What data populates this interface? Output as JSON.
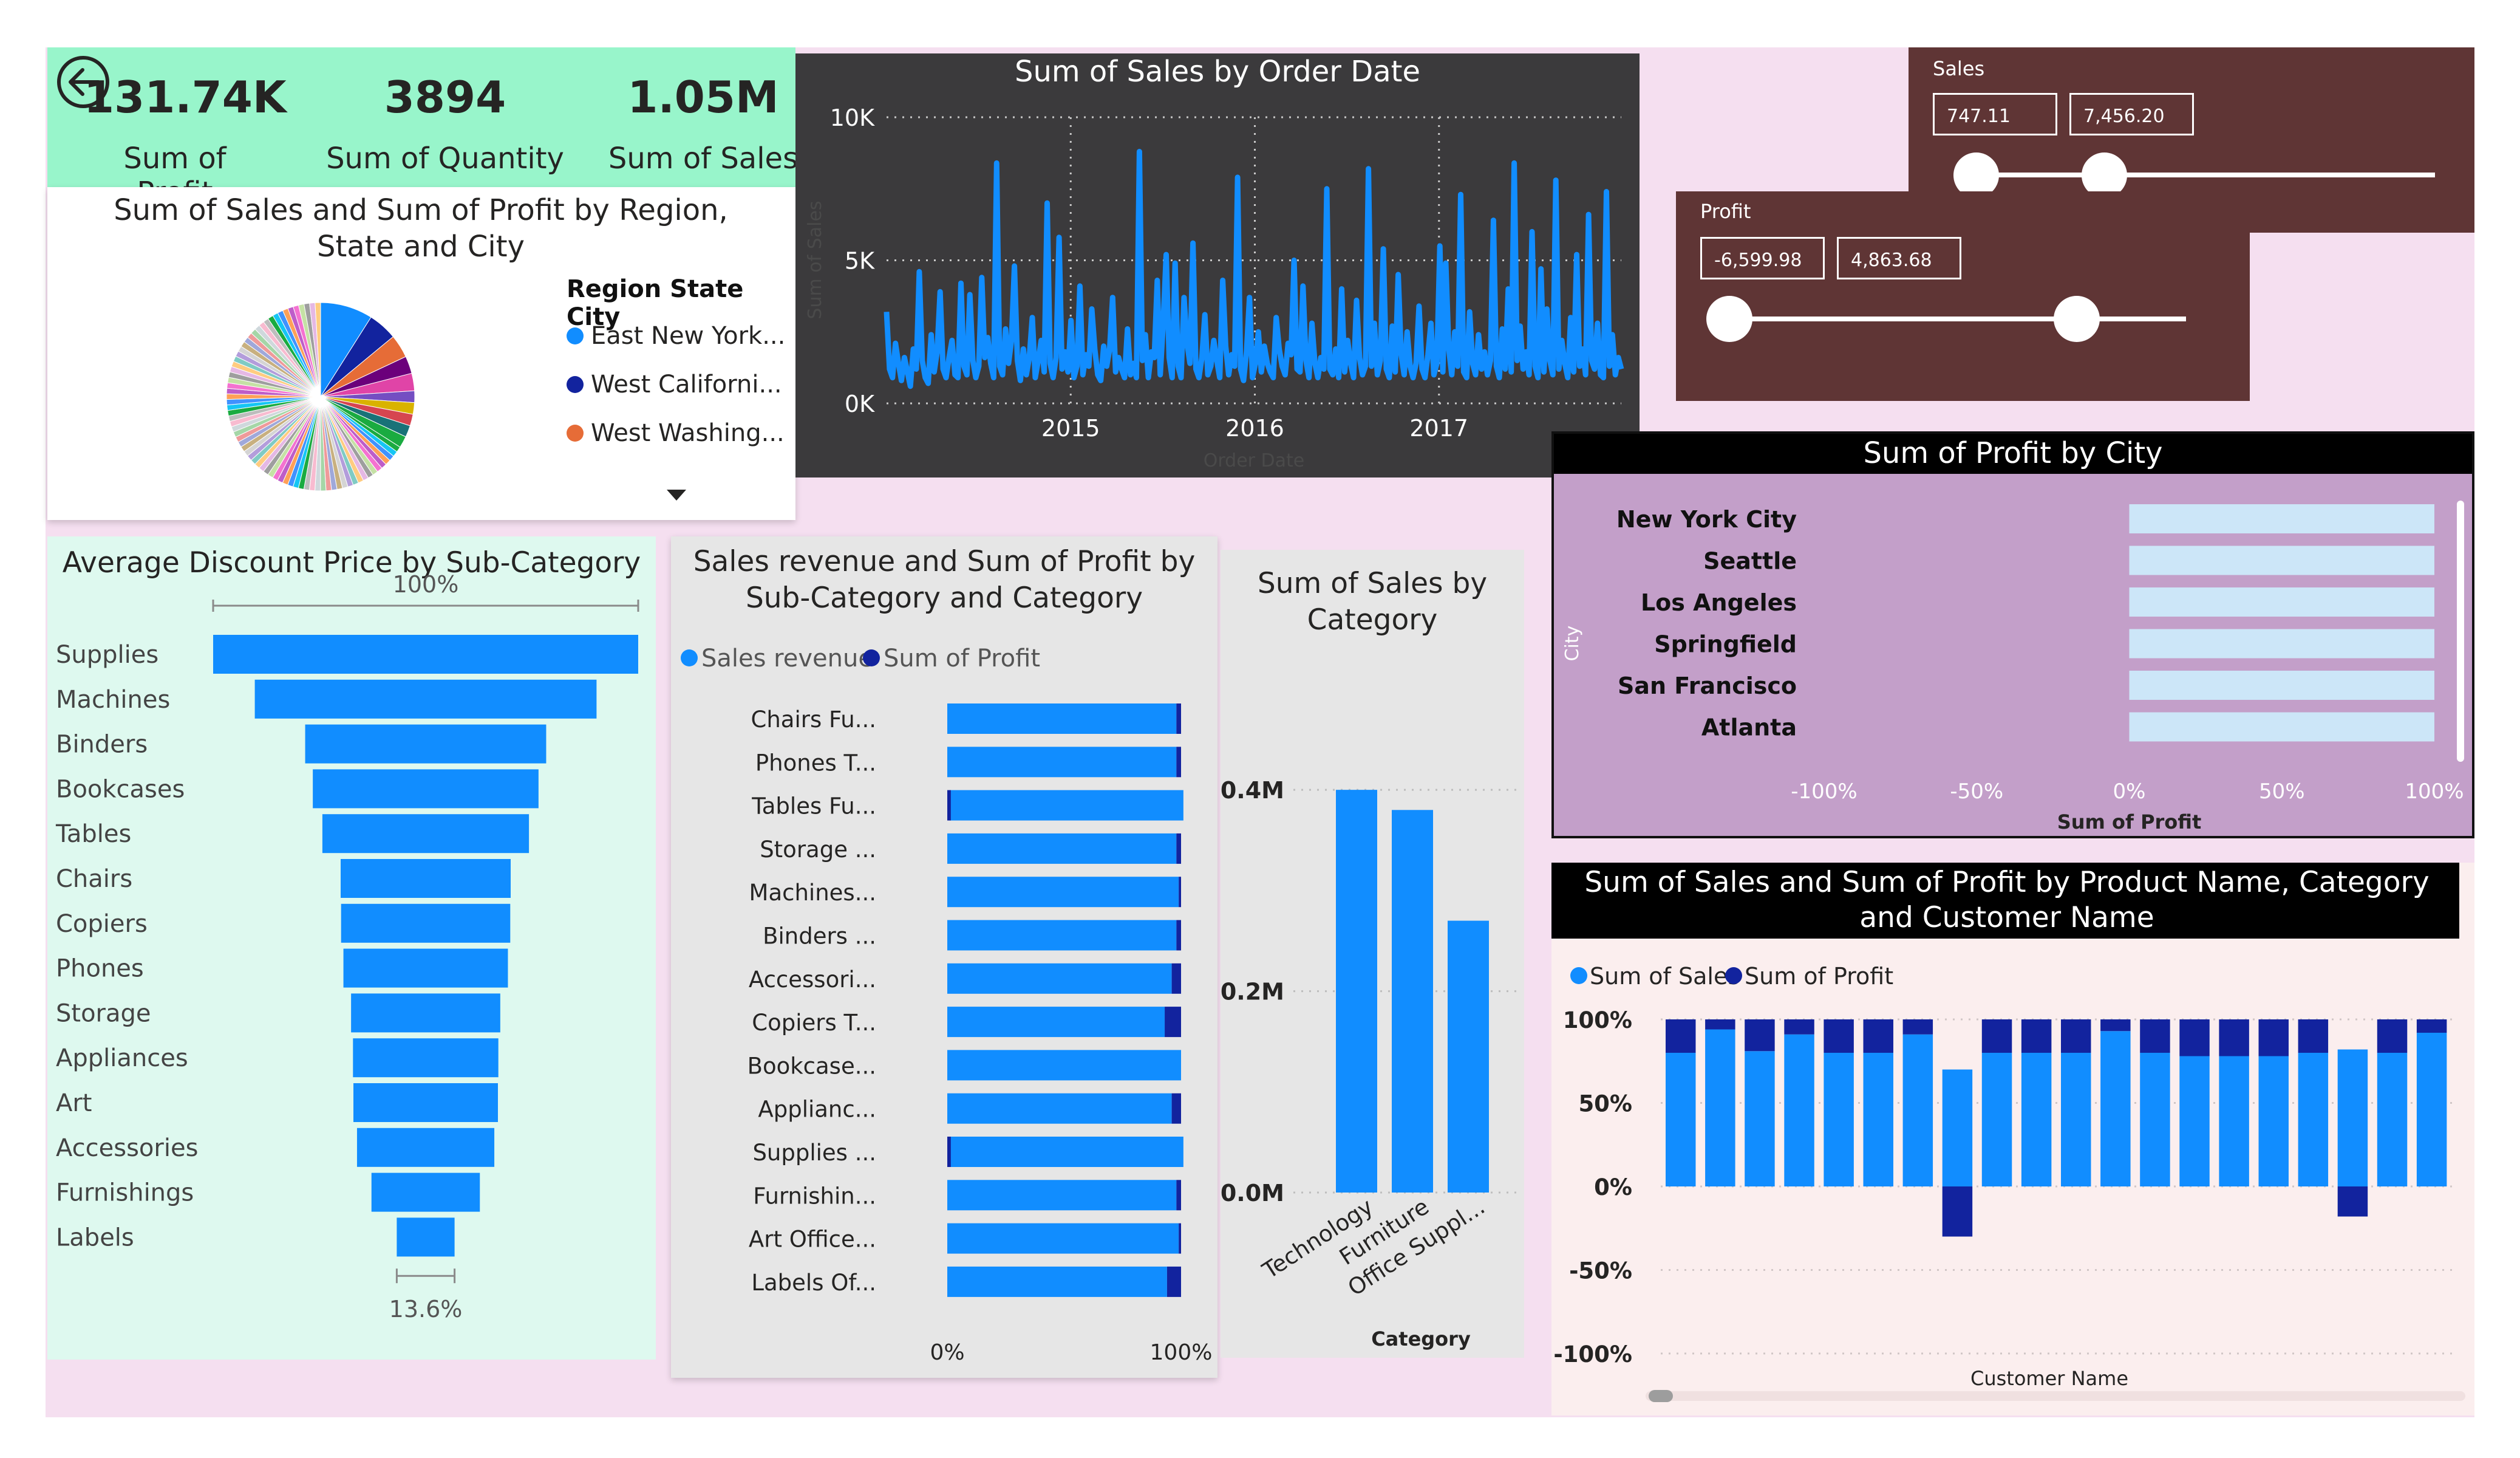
{
  "kpis": [
    {
      "value": "131.74K",
      "label": "Sum of Profit"
    },
    {
      "value": "3894",
      "label": "Sum of Quantity"
    },
    {
      "value": "1.05M",
      "label": "Sum of Sales"
    }
  ],
  "icons": {
    "back": "back-arrow-icon",
    "scroll_down": "caret-down-icon"
  },
  "colors": {
    "page_bg": "#f5dff0",
    "kpi_bg": "#98f5cb",
    "dark_panel": "#3b3a3c",
    "slicer_bg": "#5f3535",
    "series_blue": "#118dff",
    "series_navy": "#12239e",
    "funnel_bg": "#def9ef",
    "gray_panel": "#e6e6e6",
    "city_bg": "#c39fc9",
    "city_bar": "#cce6f8",
    "product_bg": "#fbeeee"
  },
  "charts": [
    {
      "title": "Sum of Sales and Sum of Profit by Region, State and City",
      "chart_data": {
        "type": "pie",
        "legend_title": "Region State City",
        "legend": [
          "East New York...",
          "West Californi...",
          "West Washing..."
        ],
        "legend_colors": [
          "#118dff",
          "#12239e",
          "#e66c37"
        ],
        "slice_shares": [
          0.09,
          0.05,
          0.04,
          0.03,
          0.03,
          0.02,
          0.02,
          0.02,
          0.02,
          0.02
        ],
        "slice_colors": [
          "#118dff",
          "#12239e",
          "#e66c37",
          "#6b007b",
          "#e044a7",
          "#744ec2",
          "#d9b300",
          "#d64550",
          "#197278",
          "#1aab40"
        ],
        "legend_placement": "right"
      }
    },
    {
      "title": "Sum of Sales by Order Date",
      "chart_data": {
        "type": "line",
        "xlabel": "Order Date",
        "ylabel": "Sum of Sales",
        "ytick_labels": [
          "0K",
          "5K",
          "10K"
        ],
        "xtick_labels": [
          "2015",
          "2016",
          "2017"
        ],
        "ylim": [
          0,
          10000
        ],
        "x_start": 2014.0,
        "x_end": 2017.99,
        "values": [
          3200,
          1200,
          900,
          2100,
          1400,
          800,
          1600,
          1100,
          600,
          1900,
          1200,
          4600,
          1500,
          900,
          700,
          2400,
          1100,
          1800,
          3900,
          1200,
          900,
          1600,
          2200,
          1000,
          900,
          4200,
          1300,
          1000,
          3800,
          1500,
          900,
          1300,
          4400,
          1600,
          2300,
          1400,
          900,
          8400,
          1300,
          1000,
          2600,
          1400,
          2200,
          4800,
          1500,
          800,
          1900,
          1000,
          1600,
          3000,
          900,
          1500,
          2200,
          1100,
          7000,
          1400,
          900,
          1600,
          5800,
          1200,
          1800,
          1100,
          2900,
          900,
          1300,
          4100,
          1000,
          1700,
          1300,
          3300,
          1900,
          1000,
          800,
          2000,
          1300,
          1900,
          3700,
          1100,
          1600,
          1200,
          900,
          2600,
          1000,
          1400,
          900,
          8800,
          1500,
          2400,
          900,
          1800,
          1600,
          4300,
          1000,
          2800,
          5200,
          1600,
          900,
          4900,
          1300,
          900,
          3700,
          2100,
          1400,
          5600,
          1200,
          900,
          1600,
          3100,
          1000,
          1300,
          2200,
          1500,
          900,
          4300,
          2000,
          1000,
          1700,
          1300,
          7900,
          1200,
          800,
          1800,
          3700,
          900,
          1400,
          2500,
          1100,
          2000,
          1400,
          1100,
          900,
          3000,
          1900,
          1300,
          1000,
          2100,
          1700,
          5000,
          1200,
          1100,
          4100,
          1500,
          900,
          2800,
          1400,
          900,
          1600,
          1200,
          7500,
          1200,
          1000,
          1900,
          900,
          4000,
          1100,
          2200,
          1400,
          900,
          3600,
          1600,
          1000,
          1300,
          8200,
          1300,
          2800,
          1000,
          1500,
          5400,
          1200,
          900,
          2700,
          1100,
          4500,
          1700,
          1000,
          2500,
          1300,
          900,
          1400,
          3400,
          1200,
          900,
          1700,
          2800,
          1000,
          1400,
          5500,
          1100,
          4900,
          1900,
          1000,
          2500,
          1300,
          7300,
          1100,
          900,
          3200,
          1400,
          1000,
          2400,
          1200,
          1800,
          1000,
          1500,
          6400,
          1300,
          900,
          2600,
          1200,
          4000,
          1100,
          8400,
          1500,
          2700,
          1200,
          1800,
          1000,
          6000,
          1300,
          900,
          4700,
          1100,
          3300,
          1500,
          1000,
          7800,
          1200,
          2200,
          1400,
          900,
          3000,
          1100,
          5200,
          1300,
          1900,
          1000,
          6600,
          1500,
          1200,
          2800,
          1000,
          900,
          7400,
          1300,
          2400,
          1000,
          1600,
          1200
        ]
      }
    },
    {
      "title": "Average Discount Price by Sub-Category",
      "chart_data": {
        "type": "bar",
        "orientation": "funnel",
        "categories": [
          "Supplies",
          "Machines",
          "Binders",
          "Bookcases",
          "Tables",
          "Chairs",
          "Copiers",
          "Phones",
          "Storage",
          "Appliances",
          "Art",
          "Accessories",
          "Furnishings",
          "Labels"
        ],
        "values": [
          100,
          80.4,
          56.7,
          53.1,
          48.6,
          40.0,
          39.8,
          38.7,
          35.1,
          34.2,
          34.0,
          32.3,
          25.5,
          13.6
        ],
        "value_unit": "%",
        "top_label": "100%",
        "bottom_label": "13.6%"
      }
    },
    {
      "title": "Sales revenue and Sum of Profit by Sub-Category and Category",
      "chart_data": {
        "type": "bar",
        "orientation": "horizontal-100%-stacked",
        "categories": [
          "Chairs Fu...",
          "Phones T...",
          "Tables Fu...",
          "Storage ...",
          "Machines...",
          "Binders ...",
          "Accessori...",
          "Copiers T...",
          "Bookcase...",
          "Applianc...",
          "Supplies ...",
          "Furnishin...",
          "Art Office...",
          "Labels Of..."
        ],
        "series": [
          {
            "name": "Sales revenue",
            "values": [
              98,
              98,
              100,
              98,
              99,
              98,
              96,
              93,
              100,
              96,
              100,
              98,
              99,
              94
            ]
          },
          {
            "name": "Sum of Profit",
            "values": [
              2,
              2,
              -1,
              2,
              1,
              2,
              4,
              7,
              0,
              4,
              -1,
              2,
              1,
              6
            ]
          }
        ],
        "xtick_labels": [
          "0%",
          "100%"
        ],
        "legend_placement": "top-left"
      }
    },
    {
      "title": "Sum of Sales by Category",
      "chart_data": {
        "type": "bar",
        "categories": [
          "Technology",
          "Furniture",
          "Office Suppl..."
        ],
        "values": [
          0.4,
          0.38,
          0.27
        ],
        "value_unit": "M",
        "ytick_labels": [
          "0.0M",
          "0.2M",
          "0.4M"
        ],
        "xlabel": "Category",
        "ylim": [
          0,
          0.42
        ]
      }
    },
    {
      "title": "Sum of Profit by City",
      "chart_data": {
        "type": "bar",
        "orientation": "horizontal",
        "categories": [
          "New York City",
          "Seattle",
          "Los Angeles",
          "Springfield",
          "San Francisco",
          "Atlanta"
        ],
        "values": [
          100,
          100,
          100,
          100,
          100,
          100
        ],
        "xtick_labels": [
          "-100%",
          "-50%",
          "0%",
          "50%",
          "100%"
        ],
        "xlabel": "Sum of Profit",
        "ylabel": "City",
        "xlim": [
          -100,
          100
        ]
      }
    },
    {
      "title": "Sum of Sales and Sum of Profit by Product Name, Category and Customer Name",
      "chart_data": {
        "type": "bar",
        "orientation": "vertical-100%-stacked",
        "series": [
          {
            "name": "Sum of Sales",
            "values": [
              80,
              94,
              81,
              91,
              80,
              80,
              91,
              70,
              80,
              80,
              80,
              93,
              80,
              78,
              78,
              78,
              80,
              82,
              80,
              92
            ]
          },
          {
            "name": "Sum of Profit",
            "values": [
              20,
              6,
              19,
              9,
              20,
              20,
              9,
              -30,
              20,
              20,
              20,
              7,
              20,
              22,
              22,
              22,
              20,
              -18,
              20,
              8
            ]
          }
        ],
        "ytick_labels": [
          "100%",
          "50%",
          "0%",
          "-50%",
          "-100%"
        ],
        "xlabel": "Customer Name",
        "ylim": [
          -100,
          100
        ],
        "legend_placement": "top-left"
      }
    }
  ],
  "slicers": {
    "sales": {
      "label": "Sales",
      "min": "747.11",
      "max": "7,456.20",
      "min_pos": 0.0,
      "max_pos": 0.28
    },
    "profit": {
      "label": "Profit",
      "min": "-6,599.98",
      "max": "4,863.68",
      "min_pos": 0.0,
      "max_pos": 0.76
    }
  }
}
